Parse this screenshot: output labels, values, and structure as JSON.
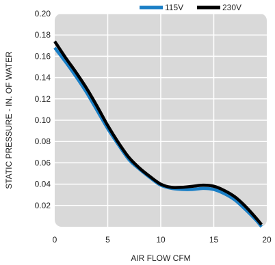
{
  "chart_data": {
    "type": "line",
    "xlabel": "AIR FLOW CFM",
    "ylabel": "STATIC PRESSURE - IN. OF WATER",
    "xlim": [
      0,
      20
    ],
    "ylim": [
      0,
      0.2
    ],
    "x_ticks": [
      "0",
      "5",
      "10",
      "15",
      "20"
    ],
    "y_ticks": [
      "0.02",
      "0.04",
      "0.06",
      "0.08",
      "0.10",
      "0.12",
      "0.14",
      "0.16",
      "0.18",
      "0.20"
    ],
    "grid": true,
    "legend_position": "top-right",
    "series": [
      {
        "name": "115V",
        "color": "#1a7fc6",
        "x": [
          0,
          1,
          2,
          3,
          4,
          5,
          6,
          7,
          8,
          9,
          10,
          11,
          12,
          13,
          14,
          15,
          16,
          17,
          18,
          19,
          19.5
        ],
        "y": [
          0.168,
          0.155,
          0.141,
          0.126,
          0.109,
          0.092,
          0.077,
          0.063,
          0.054,
          0.046,
          0.039,
          0.036,
          0.035,
          0.035,
          0.036,
          0.035,
          0.031,
          0.025,
          0.016,
          0.006,
          0.0
        ]
      },
      {
        "name": "230V",
        "color": "#000000",
        "x": [
          0,
          1,
          2,
          3,
          4,
          5,
          6,
          7,
          8,
          9,
          10,
          11,
          12,
          13,
          14,
          15,
          16,
          17,
          18,
          19,
          19.5
        ],
        "y": [
          0.174,
          0.159,
          0.145,
          0.13,
          0.113,
          0.095,
          0.079,
          0.065,
          0.055,
          0.047,
          0.04,
          0.037,
          0.037,
          0.038,
          0.039,
          0.038,
          0.034,
          0.028,
          0.019,
          0.008,
          0.002
        ]
      }
    ]
  }
}
